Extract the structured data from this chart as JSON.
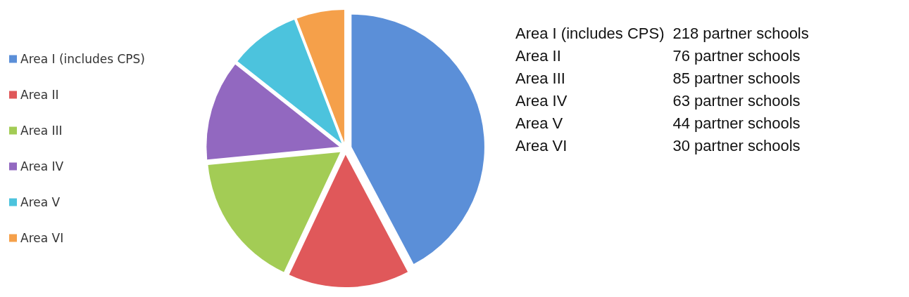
{
  "chart_data": {
    "type": "pie",
    "categories": [
      "Area I (includes CPS)",
      "Area II",
      "Area III",
      "Area IV",
      "Area V",
      "Area VI"
    ],
    "values": [
      42.25,
      14.73,
      16.47,
      12.21,
      8.53,
      5.81
    ],
    "colors": [
      "#5b8fd8",
      "#e0585a",
      "#a3cc55",
      "#9268c0",
      "#4cc3dd",
      "#f5a04a"
    ],
    "annotations": [
      "Area I (includes CPS)",
      "218 partner schools",
      "Area II",
      "76 partner schools",
      "Area III",
      "85 partner schools",
      "Area IV",
      "63 partner schools",
      "Area V",
      "44 partner schools",
      "Area VI",
      "30 partner schools"
    ],
    "legend": "left"
  }
}
